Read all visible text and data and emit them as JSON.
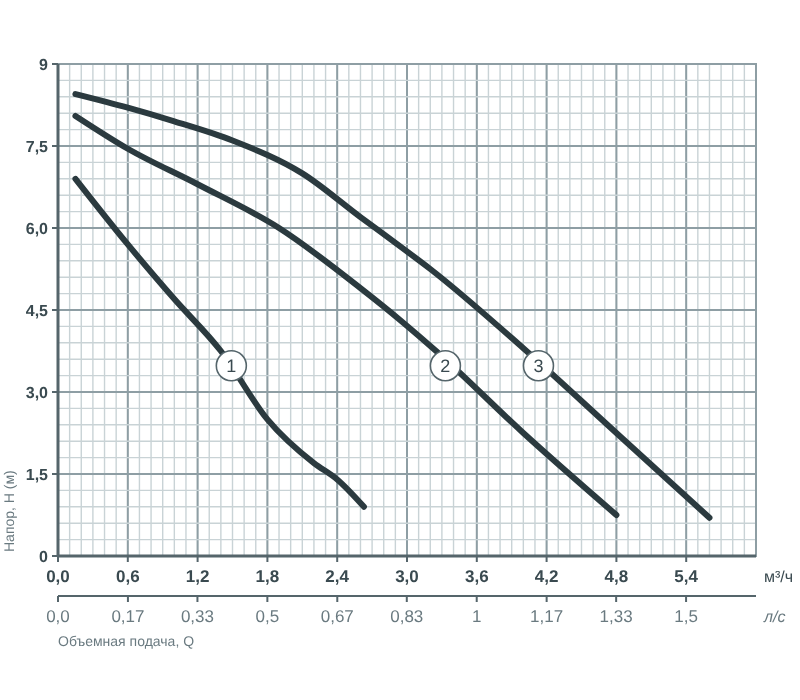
{
  "chart_data": {
    "type": "line",
    "ylabel": "Напор, H (м)",
    "xlabel": "м³/ч",
    "x2label": "л/с",
    "annotations": [
      "Объемная подача, Q",
      {
        "text": "1",
        "x": 1.49,
        "y": 3.48
      },
      {
        "text": "2",
        "x": 3.33,
        "y": 3.48
      },
      {
        "text": "3",
        "x": 4.13,
        "y": 3.48
      }
    ],
    "xlim": [
      0,
      6
    ],
    "ylim": [
      0,
      9
    ],
    "xticks": [
      {
        "value": 0,
        "label": "0,0"
      },
      {
        "value": 0.6,
        "label": "0,6"
      },
      {
        "value": 1.2,
        "label": "1,2"
      },
      {
        "value": 1.8,
        "label": "1,8"
      },
      {
        "value": 2.4,
        "label": "2,4"
      },
      {
        "value": 3,
        "label": "3,0"
      },
      {
        "value": 3.6,
        "label": "3,6"
      },
      {
        "value": 4.2,
        "label": "4,2"
      },
      {
        "value": 4.8,
        "label": "4,8"
      },
      {
        "value": 5.4,
        "label": "5,4"
      }
    ],
    "yticks": [
      0,
      {
        "value": 1.5,
        "label": "1,5"
      },
      {
        "value": 3,
        "label": "3,0"
      },
      {
        "value": 4.5,
        "label": "4,5"
      },
      {
        "value": 6,
        "label": "6,0"
      },
      {
        "value": 7.5,
        "label": "7,5"
      },
      9
    ],
    "x2lim": [
      0,
      1.667
    ],
    "x2ticks": [
      {
        "value": 0,
        "label": "0,0"
      },
      {
        "value": 0.167,
        "label": "0,17"
      },
      {
        "value": 0.333,
        "label": "0,33"
      },
      {
        "value": 0.5,
        "label": "0,5"
      },
      {
        "value": 0.667,
        "label": "0,67"
      },
      {
        "value": 0.833,
        "label": "0,83"
      },
      1,
      {
        "value": 1.167,
        "label": "1,17"
      },
      {
        "value": 1.333,
        "label": "1,33"
      },
      {
        "value": 1.5,
        "label": "1,5"
      }
    ],
    "grid": true,
    "marker": "none",
    "line_style": "solid",
    "series": [
      {
        "color": "#2b3a3f",
        "x": [
          0.15,
          0.6,
          1.0,
          1.4,
          1.8,
          2.2,
          2.4,
          2.63
        ],
        "values": [
          6.9,
          5.7,
          4.7,
          3.75,
          2.5,
          1.7,
          1.4,
          0.9
        ]
      },
      {
        "color": "#2b3a3f",
        "x": [
          0.15,
          0.6,
          1.2,
          1.9,
          2.6,
          2.95,
          3.25,
          4.0,
          4.8
        ],
        "values": [
          8.05,
          7.45,
          6.8,
          6.0,
          4.9,
          4.3,
          3.75,
          2.25,
          0.75
        ]
      },
      {
        "color": "#2b3a3f",
        "x": [
          0.15,
          0.6,
          1.0,
          1.5,
          2.1,
          2.6,
          2.95,
          3.2,
          4.0,
          4.8,
          5.6
        ],
        "values": [
          8.45,
          8.2,
          7.95,
          7.6,
          7.0,
          6.2,
          5.65,
          5.25,
          3.8,
          2.25,
          0.7
        ]
      }
    ]
  }
}
